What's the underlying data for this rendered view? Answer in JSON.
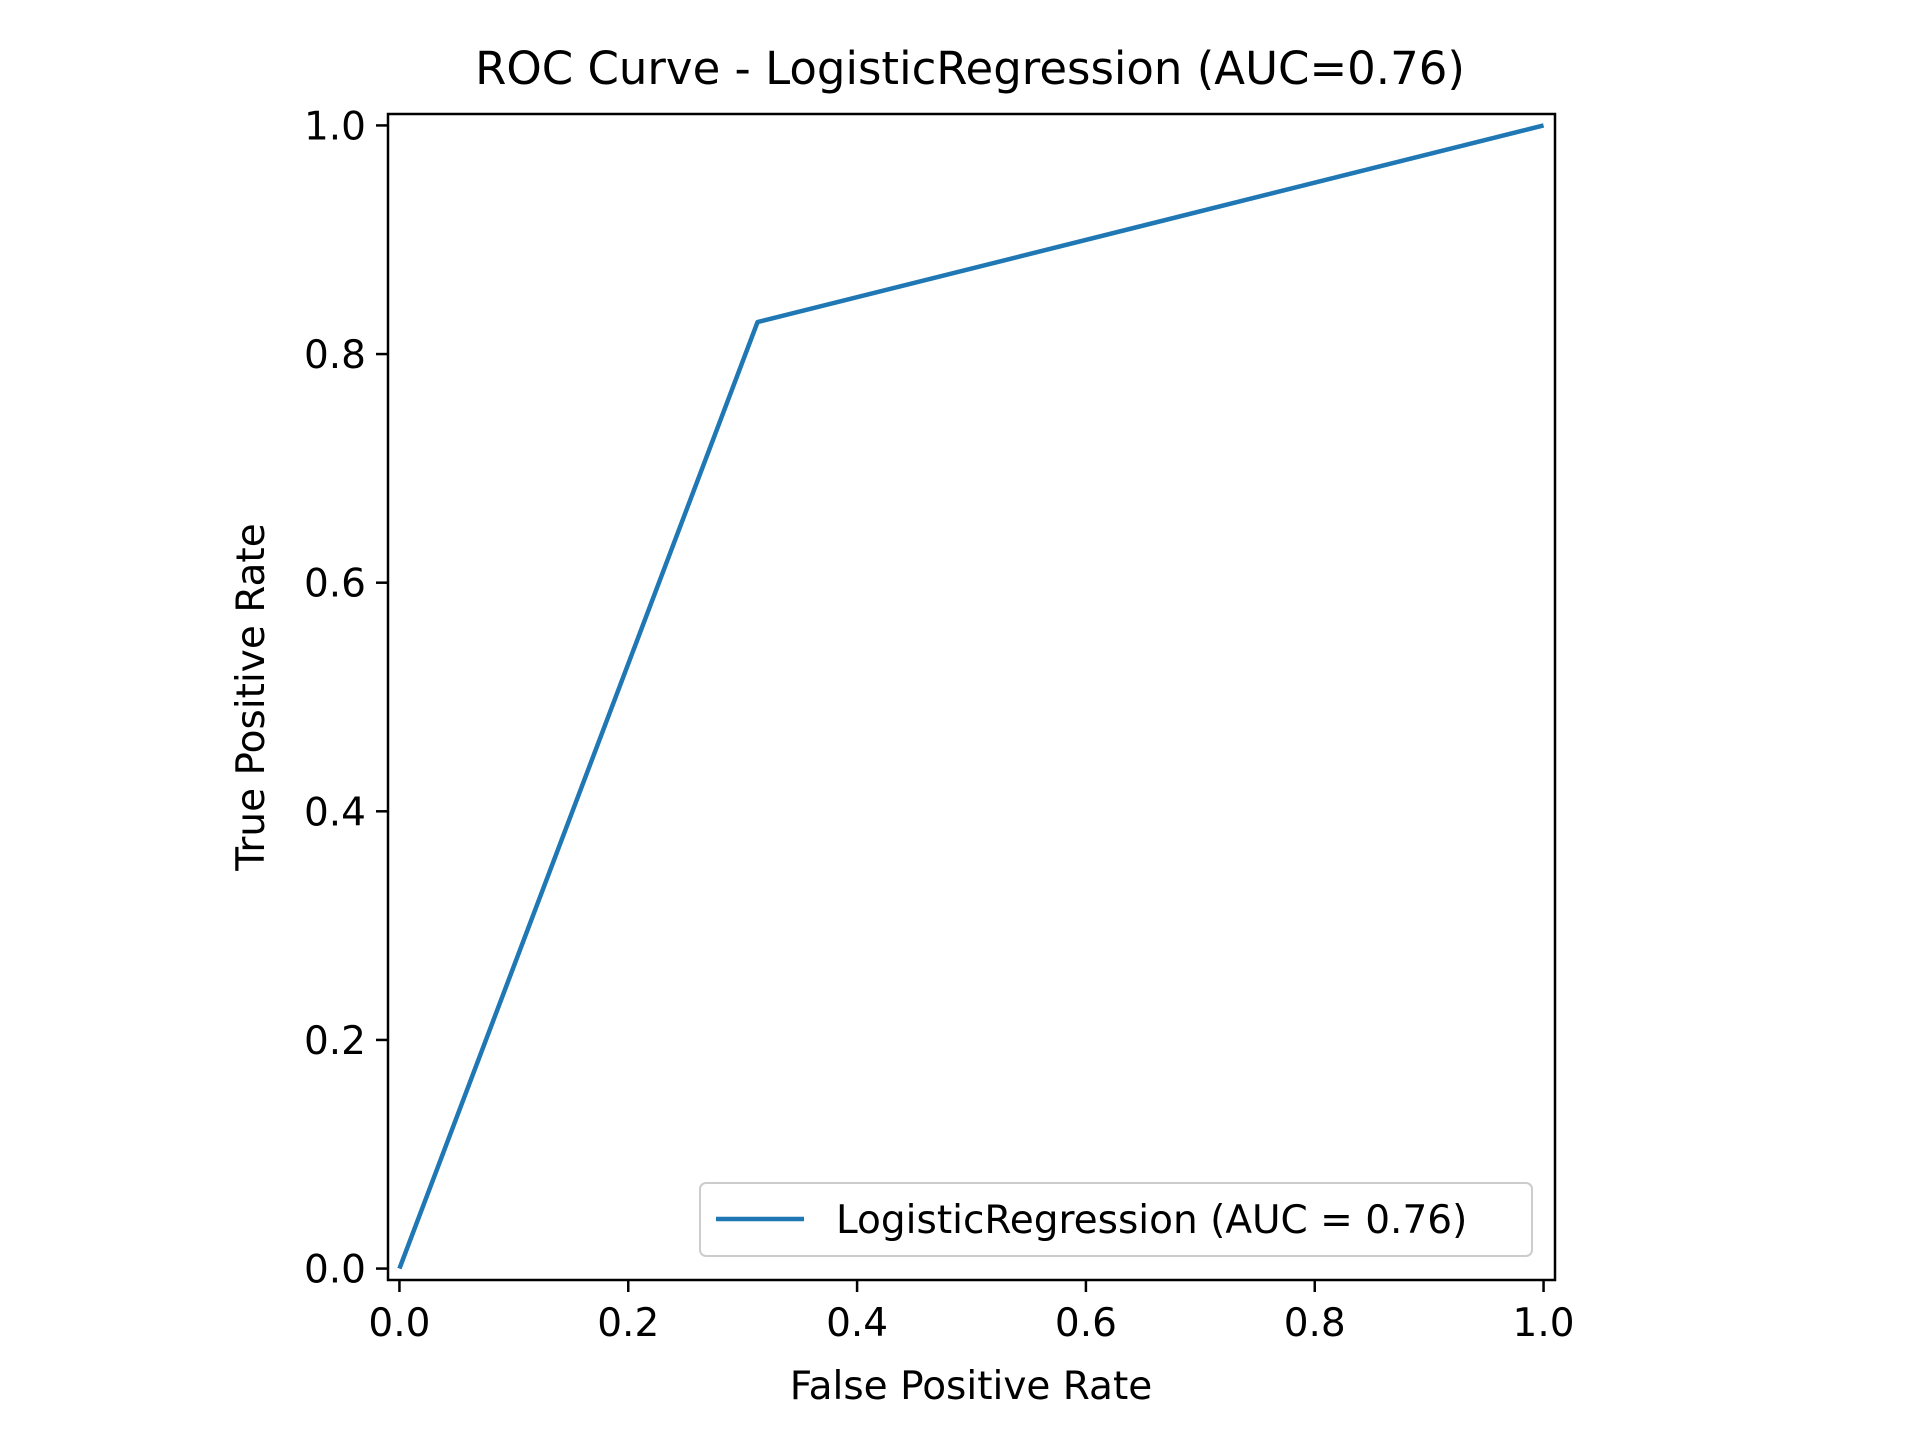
{
  "chart_data": {
    "type": "line",
    "title": "ROC Curve - LogisticRegression (AUC=0.76)",
    "xlabel": "False Positive Rate",
    "ylabel": "True Positive Rate",
    "xlim": [
      -0.01,
      1.01
    ],
    "ylim": [
      -0.01,
      1.01
    ],
    "x_ticks": [
      0.0,
      0.2,
      0.4,
      0.6,
      0.8,
      1.0
    ],
    "x_tick_labels": [
      "0.0",
      "0.2",
      "0.4",
      "0.6",
      "0.8",
      "1.0"
    ],
    "y_ticks": [
      0.0,
      0.2,
      0.4,
      0.6,
      0.8,
      1.0
    ],
    "y_tick_labels": [
      "0.0",
      "0.2",
      "0.4",
      "0.6",
      "0.8",
      "1.0"
    ],
    "grid": false,
    "legend_position": "lower-right",
    "series": [
      {
        "name": "LogisticRegression (AUC = 0.76)",
        "color": "#1f77b4",
        "x": [
          0.0,
          0.313,
          1.0
        ],
        "y": [
          0.0,
          0.828,
          1.0
        ]
      }
    ]
  }
}
